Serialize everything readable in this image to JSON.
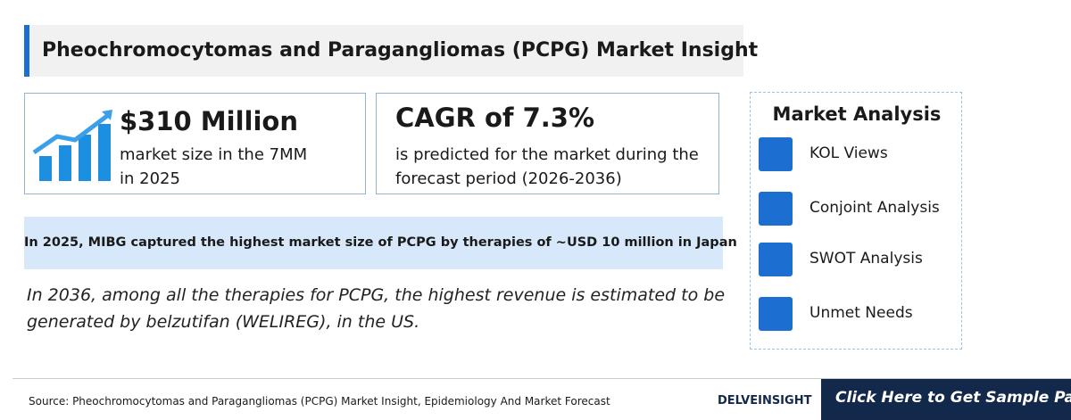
{
  "header": {
    "title": "Pheochromocytomas and Paragangliomas (PCPG) Market Insight"
  },
  "stats": [
    {
      "headline": "$310 Million",
      "lines": [
        "market size in the 7MM",
        "in 2025"
      ]
    },
    {
      "headline": "CAGR of 7.3%",
      "lines": [
        "is predicted for the market during the",
        "forecast period (2026-2036)"
      ]
    }
  ],
  "highlight": "In 2025, MIBG captured the highest market size of PCPG by therapies of ~USD 10 million in Japan",
  "insight": [
    "In 2036, among all the therapies for PCPG, the highest revenue is estimated to be",
    "generated by belzutifan (WELIREG), in the US."
  ],
  "market_analysis": {
    "title": "Market Analysis",
    "items": [
      "KOL Views",
      "Conjoint Analysis",
      "SWOT Analysis",
      "Unmet Needs"
    ]
  },
  "footer": {
    "source": "Source: Pheochromocytomas and Paragangliomas (PCPG) Market Insight, Epidemiology And Market Forecast",
    "logo": "DELVEINSIGHT",
    "button": "Click Here to Get Sample Page"
  }
}
